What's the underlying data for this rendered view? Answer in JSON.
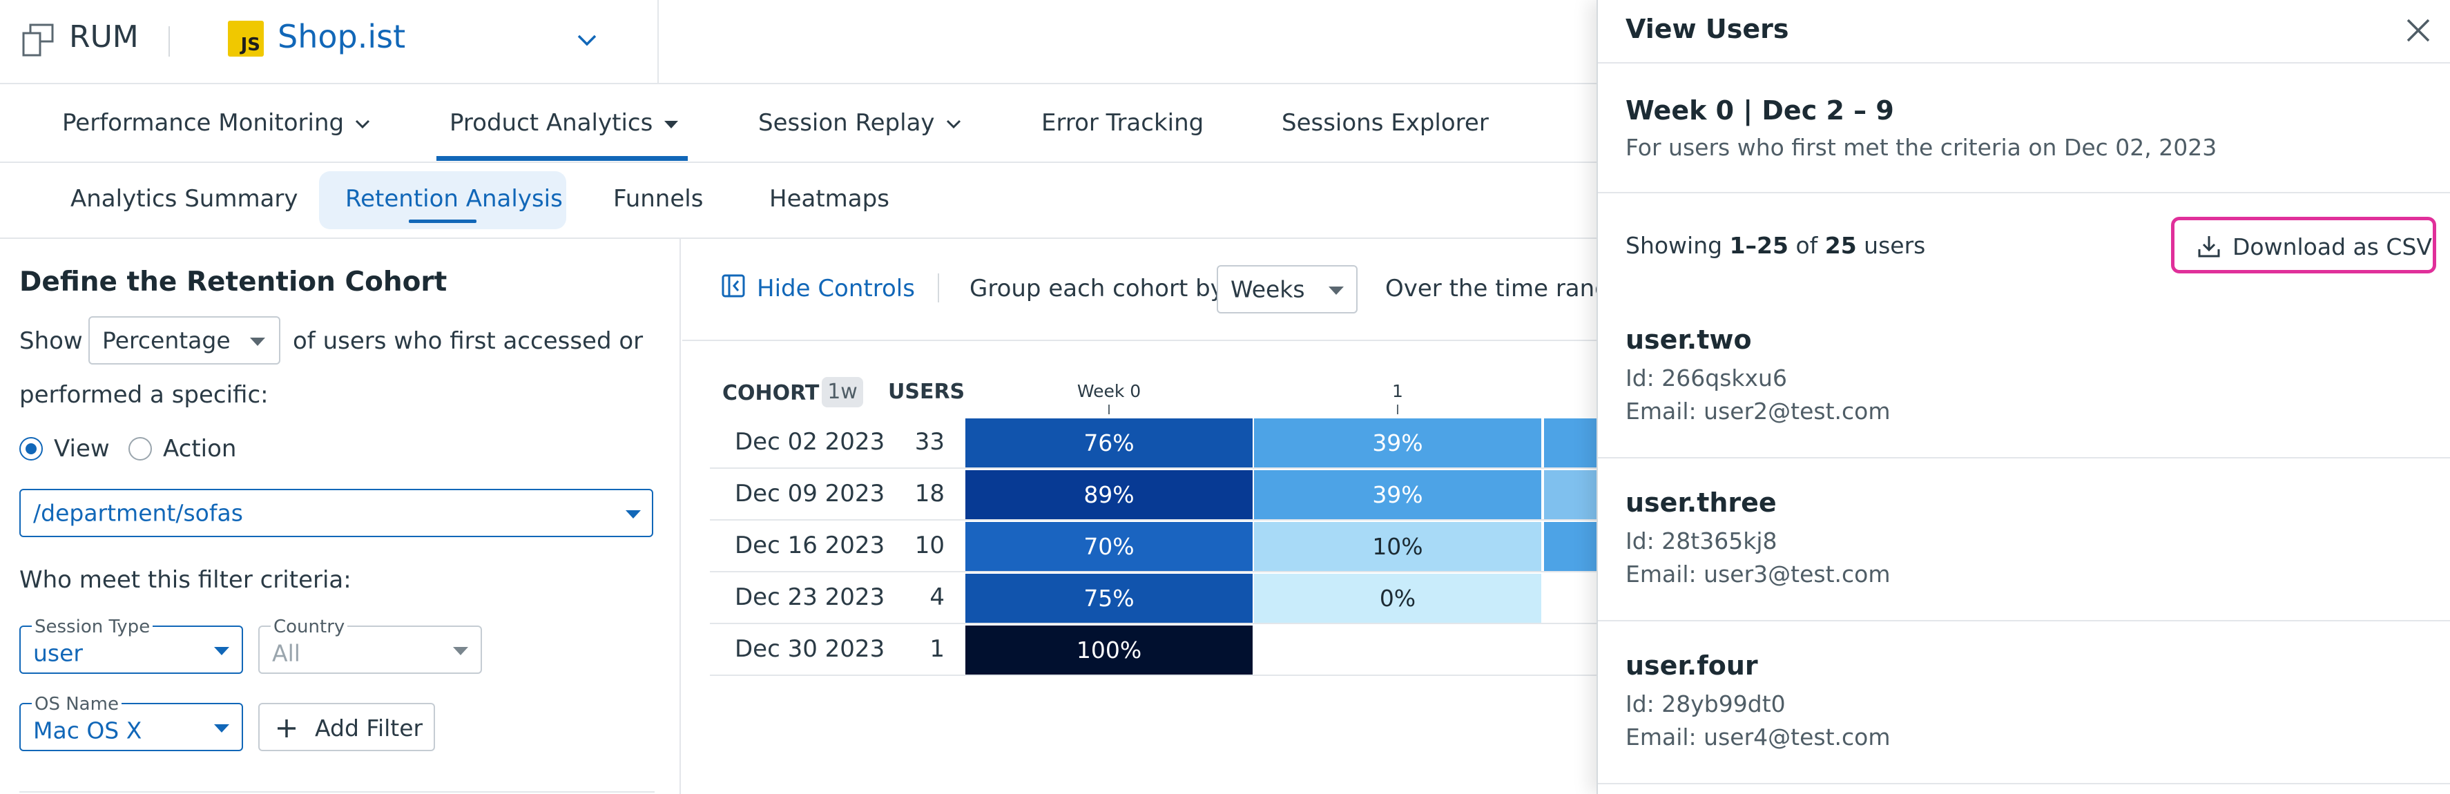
{
  "app": {
    "product": "RUM",
    "badge_text": "JS",
    "name": "Shop.ist"
  },
  "main_nav": [
    {
      "label": "Performance Monitoring",
      "has_dropdown": true
    },
    {
      "label": "Product Analytics",
      "has_dropdown": true,
      "active": true
    },
    {
      "label": "Session Replay",
      "has_dropdown": true
    },
    {
      "label": "Error Tracking"
    },
    {
      "label": "Sessions Explorer"
    }
  ],
  "sub_nav": [
    {
      "label": "Analytics Summary"
    },
    {
      "label": "Retention Analysis",
      "active": true
    },
    {
      "label": "Funnels"
    },
    {
      "label": "Heatmaps"
    }
  ],
  "cohort": {
    "title": "Define the Retention Cohort",
    "show_label": "Show",
    "show_value": "Percentage",
    "after_select": "of users who first accessed or",
    "line2": "performed a specific:",
    "radio_view": "View",
    "radio_action": "Action",
    "selected_radio": "View",
    "view_value": "/department/sofas",
    "filter_heading": "Who meet this filter criteria:",
    "filters": {
      "session_type_label": "Session Type",
      "session_type_value": "user",
      "country_label": "Country",
      "country_value": "All",
      "os_label": "OS Name",
      "os_value": "Mac OS X"
    },
    "add_filter": "Add Filter"
  },
  "controls": {
    "hide_controls": "Hide Controls",
    "group_label": "Group each cohort by:",
    "group_value": "Weeks",
    "time_range_label": "Over the time range"
  },
  "table": {
    "col_cohort": "COHORT",
    "col_cohort_badge": "1w",
    "col_users": "USERS",
    "week_headers": [
      "Week 0",
      "1"
    ],
    "rows": [
      {
        "date": "Dec 02 2023",
        "users": "33",
        "cells": [
          {
            "text": "76%",
            "color": "#1154ad"
          },
          {
            "text": "39%",
            "color": "#4da3e6"
          }
        ],
        "partial_color": "#4da3e6"
      },
      {
        "date": "Dec 09 2023",
        "users": "18",
        "cells": [
          {
            "text": "89%",
            "color": "#073a94"
          },
          {
            "text": "39%",
            "color": "#4da3e6"
          }
        ],
        "partial_color": "#7fc0ee"
      },
      {
        "date": "Dec 16 2023",
        "users": "10",
        "cells": [
          {
            "text": "70%",
            "color": "#1a64c0"
          },
          {
            "text": "10%",
            "color": "#a8daf7"
          }
        ],
        "partial_color": "#4da3e6"
      },
      {
        "date": "Dec 23 2023",
        "users": "4",
        "cells": [
          {
            "text": "75%",
            "color": "#1154ad"
          },
          {
            "text": "0%",
            "color": "#c9ecfb"
          }
        ]
      },
      {
        "date": "Dec 30 2023",
        "users": "1",
        "cells": [
          {
            "text": "100%",
            "color": "#01102f"
          }
        ]
      }
    ]
  },
  "panel": {
    "title": "View Users",
    "week_title": "Week 0 | Dec 2 – 9",
    "week_desc": "For users who first met the criteria on Dec 02, 2023",
    "showing_prefix": "Showing ",
    "showing_range": "1–25",
    "showing_mid": " of ",
    "showing_total": "25",
    "showing_suffix": " users",
    "download_label": "Download as CSV",
    "users": [
      {
        "name": "user.two",
        "id": "Id: 266qskxu6",
        "email": "Email: user2@test.com"
      },
      {
        "name": "user.three",
        "id": "Id: 28t365kj8",
        "email": "Email: user3@test.com"
      },
      {
        "name": "user.four",
        "id": "Id: 28yb99dt0",
        "email": "Email: user4@test.com"
      }
    ]
  },
  "colors": {
    "accent": "#1167b8",
    "highlight": "#e0309a"
  }
}
